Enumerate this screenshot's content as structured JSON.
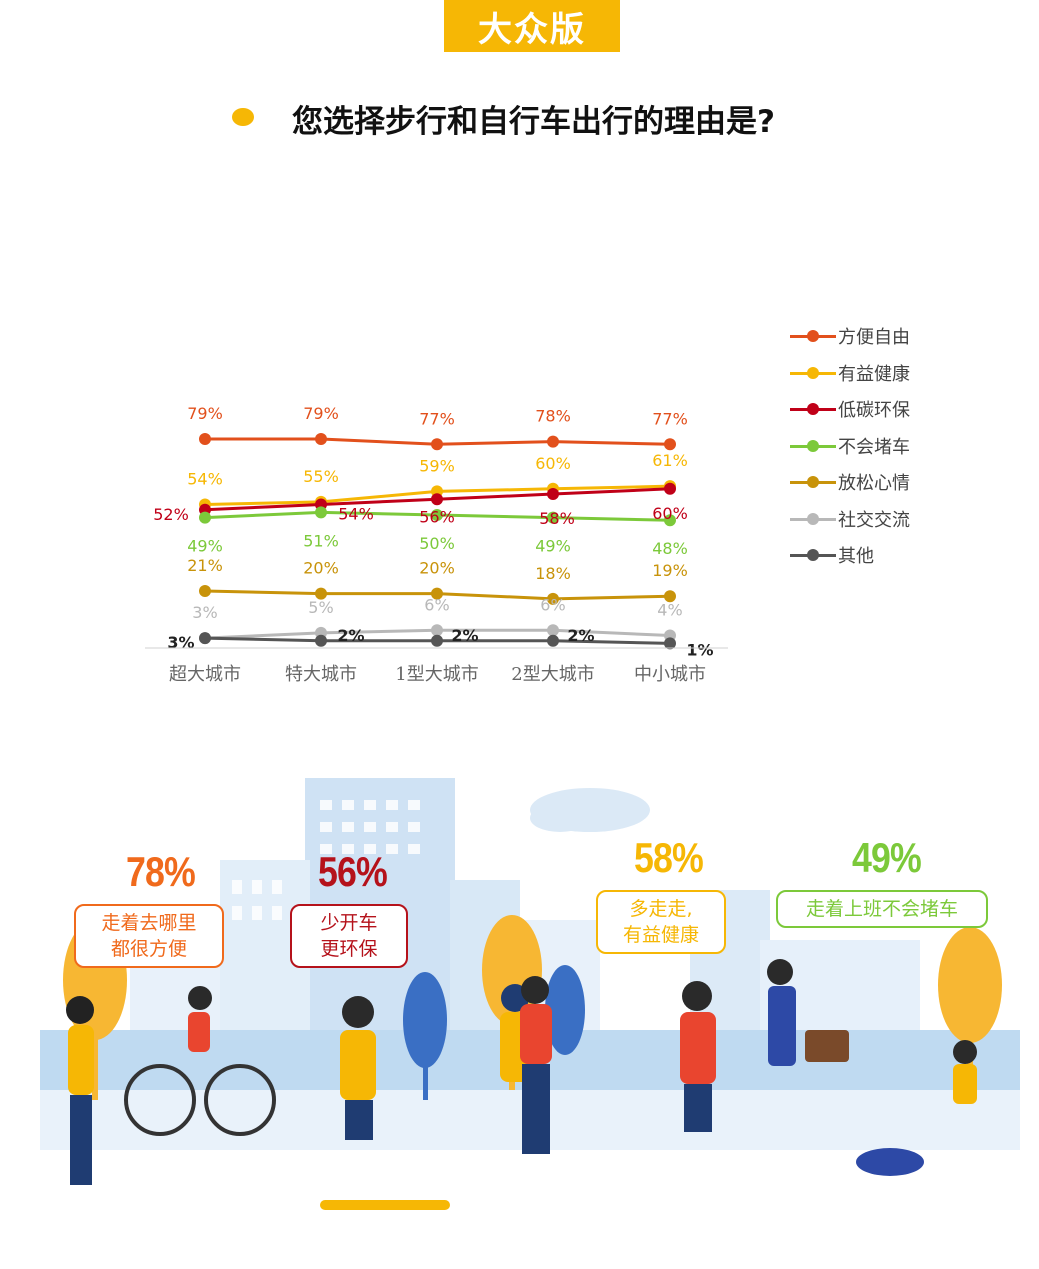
{
  "header": {
    "badge": "大众版",
    "question": "您选择步行和自行车出行的理由是?"
  },
  "chart_data": {
    "type": "line",
    "categories": [
      "超大城市",
      "特大城市",
      "1型大城市",
      "2型大城市",
      "中小城市"
    ],
    "ylim": [
      0,
      100
    ],
    "legend_position": "right",
    "series": [
      {
        "name": "方便自由",
        "color": "#e2501c",
        "values": [
          79,
          79,
          77,
          78,
          77
        ],
        "labels": [
          "79%",
          "79%",
          "77%",
          "78%",
          "77%"
        ]
      },
      {
        "name": "有益健康",
        "color": "#f6b705",
        "values": [
          54,
          55,
          59,
          60,
          61
        ],
        "labels": [
          "54%",
          "55%",
          "59%",
          "60%",
          "61%"
        ]
      },
      {
        "name": "低碳环保",
        "color": "#c00018",
        "values": [
          52,
          54,
          56,
          58,
          60
        ],
        "labels": [
          "52%",
          "54%",
          "56%",
          "58%",
          "60%"
        ]
      },
      {
        "name": "不会堵车",
        "color": "#7cc93a",
        "values": [
          49,
          51,
          50,
          49,
          48
        ],
        "labels": [
          "49%",
          "51%",
          "50%",
          "49%",
          "48%"
        ]
      },
      {
        "name": "放松心情",
        "color": "#c8930a",
        "values": [
          21,
          20,
          20,
          18,
          19
        ],
        "labels": [
          "21%",
          "20%",
          "20%",
          "18%",
          "19%"
        ]
      },
      {
        "name": "社交交流",
        "color": "#b8b8b8",
        "values": [
          3,
          5,
          6,
          6,
          4
        ],
        "labels": [
          "3%",
          "5%",
          "6%",
          "6%",
          "4%"
        ]
      },
      {
        "name": "其他",
        "color": "#555555",
        "values": [
          3,
          2,
          2,
          2,
          1
        ],
        "labels": [
          "3%",
          "2%",
          "2%",
          "2%",
          "1%"
        ]
      }
    ]
  },
  "illustration": {
    "callouts": [
      {
        "percent": "78%",
        "color": "#f06a1c",
        "text1": "走着去哪里",
        "text2": "都很方便"
      },
      {
        "percent": "56%",
        "color": "#b5121b",
        "text1": "少开车",
        "text2": "更环保"
      },
      {
        "percent": "58%",
        "color": "#f6b705",
        "text1": "多走走,",
        "text2": "有益健康"
      },
      {
        "percent": "49%",
        "color": "#7cc93a",
        "text1": "走着上班不会堵车",
        "text2": ""
      }
    ]
  }
}
